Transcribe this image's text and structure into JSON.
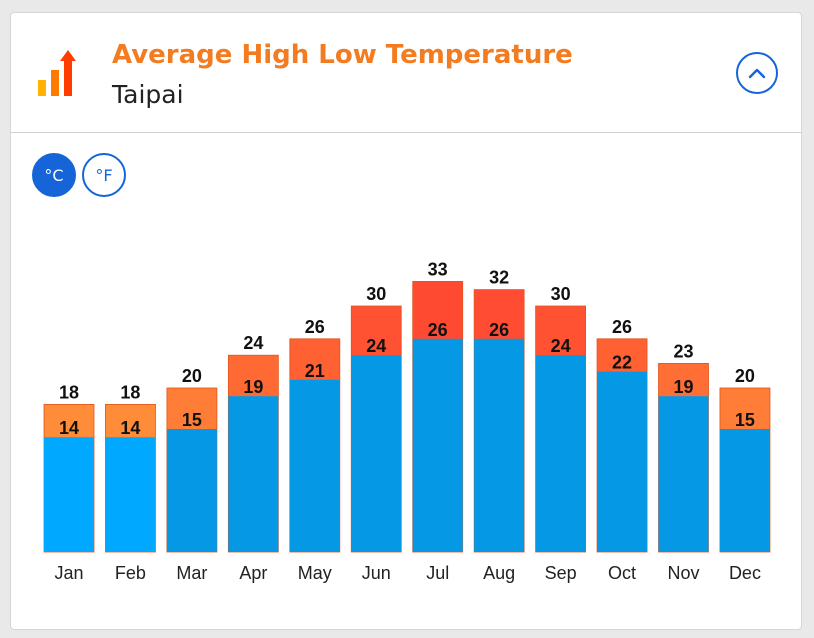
{
  "header": {
    "title": "Average High Low Temperature",
    "subtitle": "Taipai"
  },
  "icons": {
    "logo": "temperature-bars-icon",
    "collapse": "chevron-up-icon"
  },
  "units": {
    "celsius_label": "°C",
    "fahrenheit_label": "°F",
    "selected": "celsius"
  },
  "colors": {
    "accent": "#1565d8",
    "title": "#f47c20"
  },
  "chart_data": {
    "type": "bar",
    "categories": [
      "Jan",
      "Feb",
      "Mar",
      "Apr",
      "May",
      "Jun",
      "Jul",
      "Aug",
      "Sep",
      "Oct",
      "Nov",
      "Dec"
    ],
    "series": [
      {
        "name": "High",
        "values": [
          18,
          18,
          20,
          24,
          26,
          30,
          33,
          32,
          30,
          26,
          23,
          20
        ]
      },
      {
        "name": "Low",
        "values": [
          14,
          14,
          15,
          19,
          21,
          24,
          26,
          26,
          24,
          22,
          19,
          15
        ]
      }
    ],
    "high_colors": [
      "#ff8c38",
      "#ff8c38",
      "#ff7d36",
      "#ff6a34",
      "#ff6132",
      "#ff5232",
      "#ff4a32",
      "#ff4c32",
      "#ff5232",
      "#ff6132",
      "#ff6e34",
      "#ff7d36"
    ],
    "low_colors": [
      "#00a8ff",
      "#00a8ff",
      "#0598e4",
      "#0598e4",
      "#0598e4",
      "#0598e4",
      "#0598e4",
      "#0598e4",
      "#0598e4",
      "#0598e4",
      "#0598e4",
      "#0598e4"
    ],
    "unit": "°C",
    "ylim": [
      0,
      33
    ]
  }
}
